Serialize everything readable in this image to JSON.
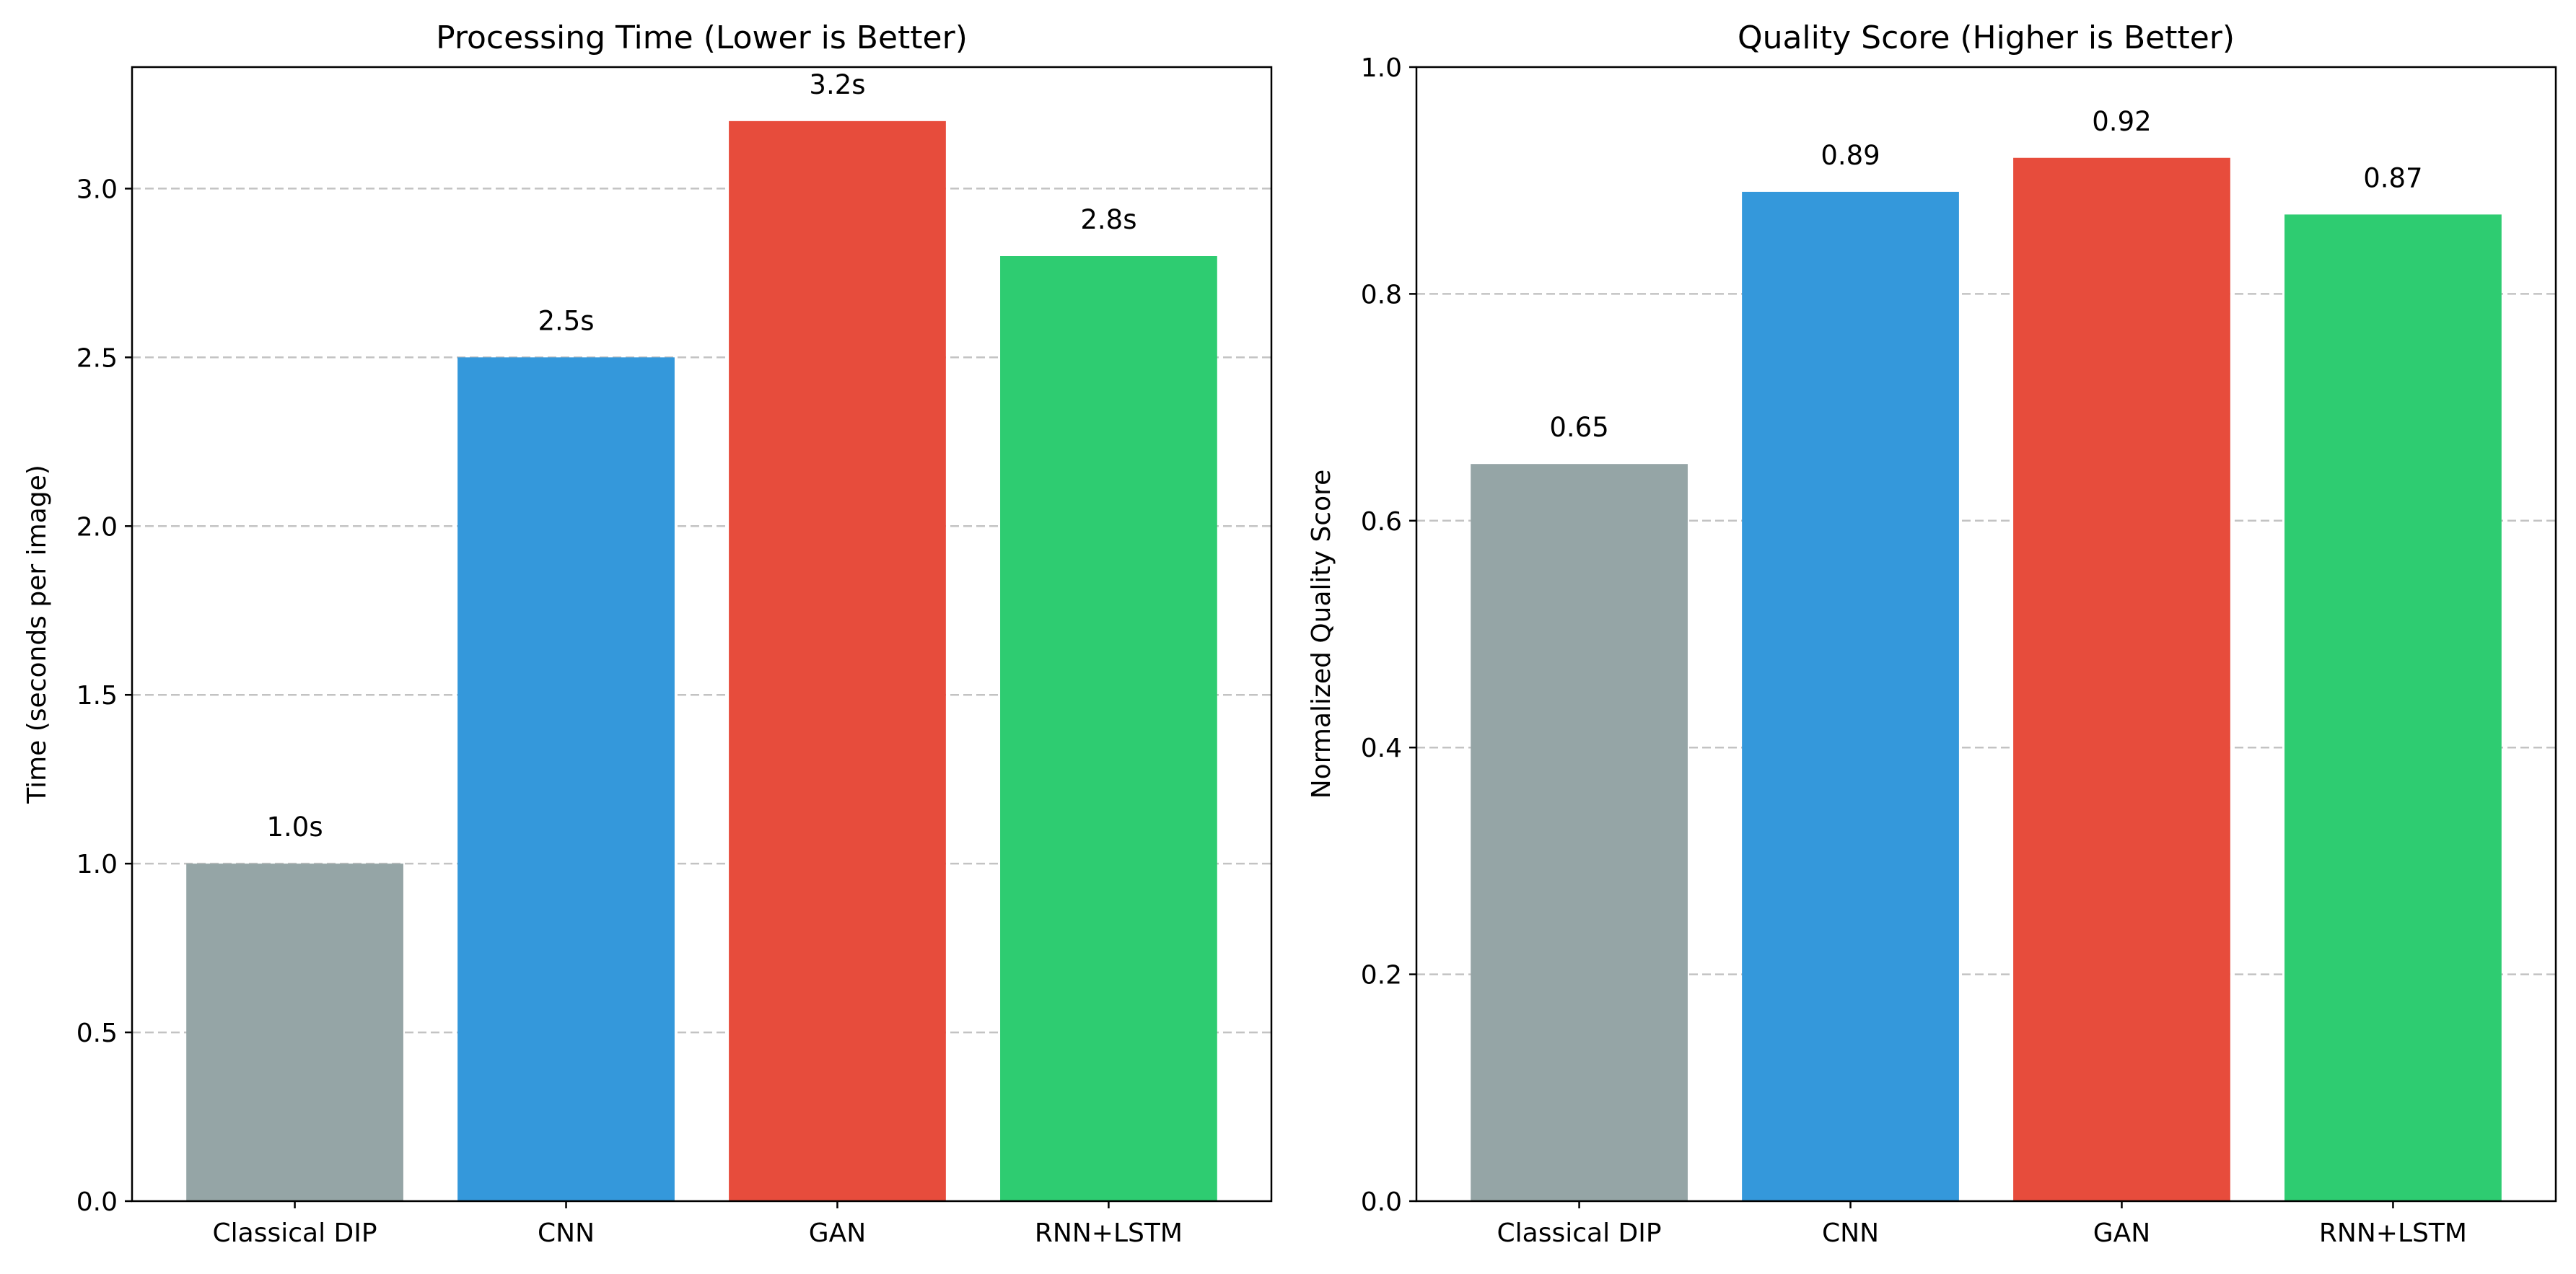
{
  "chart_data": [
    {
      "type": "bar",
      "title": "Processing Time (Lower is Better)",
      "xlabel": "",
      "ylabel": "Time (seconds per image)",
      "categories": [
        "Classical DIP",
        "CNN",
        "GAN",
        "RNN+LSTM"
      ],
      "values": [
        1.0,
        2.5,
        3.2,
        2.8
      ],
      "data_labels": [
        "1.0s",
        "2.5s",
        "3.2s",
        "2.8s"
      ],
      "colors": [
        "#95a5a6",
        "#3498db",
        "#e74c3c",
        "#2ecc71"
      ],
      "ylim": [
        0,
        3.36
      ],
      "yticks": [
        0.0,
        0.5,
        1.0,
        1.5,
        2.0,
        2.5,
        3.0
      ],
      "ytick_labels": [
        "0.0",
        "0.5",
        "1.0",
        "1.5",
        "2.0",
        "2.5",
        "3.0"
      ],
      "grid": "y-dashed"
    },
    {
      "type": "bar",
      "title": "Quality Score (Higher is Better)",
      "xlabel": "",
      "ylabel": "Normalized Quality Score",
      "categories": [
        "Classical DIP",
        "CNN",
        "GAN",
        "RNN+LSTM"
      ],
      "values": [
        0.65,
        0.89,
        0.92,
        0.87
      ],
      "data_labels": [
        "0.65",
        "0.89",
        "0.92",
        "0.87"
      ],
      "colors": [
        "#95a5a6",
        "#3498db",
        "#e74c3c",
        "#2ecc71"
      ],
      "ylim": [
        0,
        1.0
      ],
      "yticks": [
        0.0,
        0.2,
        0.4,
        0.6,
        0.8,
        1.0
      ],
      "ytick_labels": [
        "0.0",
        "0.2",
        "0.4",
        "0.6",
        "0.8",
        "1.0"
      ],
      "grid": "y-dashed"
    }
  ]
}
